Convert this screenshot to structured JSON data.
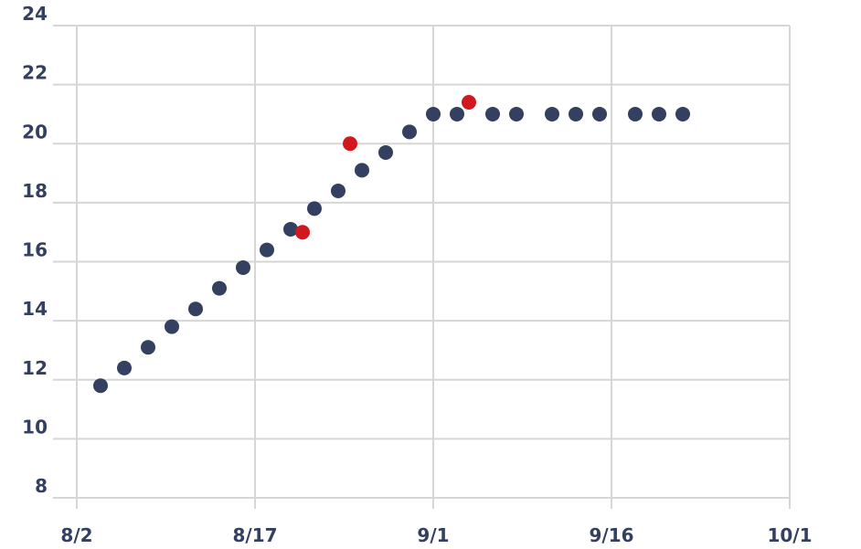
{
  "chart_data": {
    "type": "scatter",
    "title": "",
    "xlabel": "",
    "ylabel": "",
    "x_axis": {
      "type": "date",
      "range": [
        "2023-08-02",
        "2023-10-01"
      ],
      "ticks": [
        {
          "value": "2023-08-02",
          "label": "8/2"
        },
        {
          "value": "2023-08-17",
          "label": "8/17"
        },
        {
          "value": "2023-09-01",
          "label": "9/1"
        },
        {
          "value": "2023-09-16",
          "label": "9/16"
        },
        {
          "value": "2023-10-01",
          "label": "10/1"
        }
      ]
    },
    "y_axis": {
      "range": [
        8,
        24
      ],
      "ticks": [
        8,
        10,
        12,
        14,
        16,
        18,
        20,
        22,
        24
      ]
    },
    "grid": true,
    "legend": "none",
    "series": [
      {
        "color": "#34405f",
        "points": [
          {
            "x": "2023-08-04",
            "y": 11.8
          },
          {
            "x": "2023-08-06",
            "y": 12.4
          },
          {
            "x": "2023-08-08",
            "y": 13.1
          },
          {
            "x": "2023-08-10",
            "y": 13.8
          },
          {
            "x": "2023-08-12",
            "y": 14.4
          },
          {
            "x": "2023-08-14",
            "y": 15.1
          },
          {
            "x": "2023-08-16",
            "y": 15.8
          },
          {
            "x": "2023-08-18",
            "y": 16.4
          },
          {
            "x": "2023-08-20",
            "y": 17.1
          },
          {
            "x": "2023-08-22",
            "y": 17.8
          },
          {
            "x": "2023-08-24",
            "y": 18.4
          },
          {
            "x": "2023-08-26",
            "y": 19.1
          },
          {
            "x": "2023-08-28",
            "y": 19.7
          },
          {
            "x": "2023-08-30",
            "y": 20.4
          },
          {
            "x": "2023-09-01",
            "y": 21.0
          },
          {
            "x": "2023-09-03",
            "y": 21.0
          },
          {
            "x": "2023-09-06",
            "y": 21.0
          },
          {
            "x": "2023-09-08",
            "y": 21.0
          },
          {
            "x": "2023-09-11",
            "y": 21.0
          },
          {
            "x": "2023-09-13",
            "y": 21.0
          },
          {
            "x": "2023-09-15",
            "y": 21.0
          },
          {
            "x": "2023-09-18",
            "y": 21.0
          },
          {
            "x": "2023-09-20",
            "y": 21.0
          },
          {
            "x": "2023-09-22",
            "y": 21.0
          }
        ]
      },
      {
        "color": "#d0181e",
        "points": [
          {
            "x": "2023-08-21",
            "y": 17.0
          },
          {
            "x": "2023-08-25",
            "y": 20.0
          },
          {
            "x": "2023-09-04",
            "y": 21.4
          }
        ]
      }
    ]
  }
}
